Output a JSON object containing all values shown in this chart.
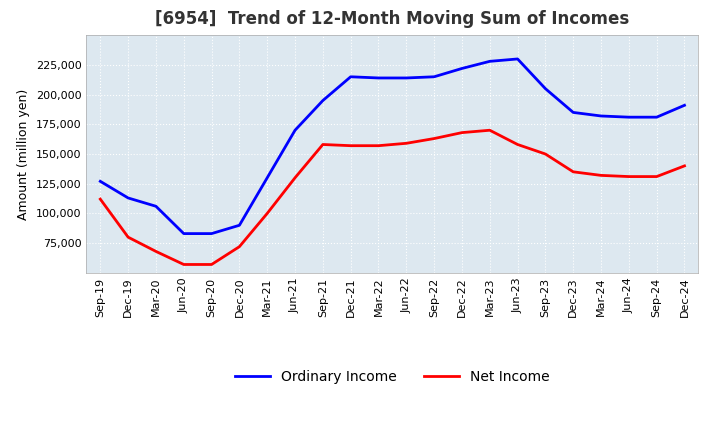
{
  "title": "[6954]  Trend of 12-Month Moving Sum of Incomes",
  "ylabel": "Amount (million yen)",
  "x_labels": [
    "Sep-19",
    "Dec-19",
    "Mar-20",
    "Jun-20",
    "Sep-20",
    "Dec-20",
    "Mar-21",
    "Jun-21",
    "Sep-21",
    "Dec-21",
    "Mar-22",
    "Jun-22",
    "Sep-22",
    "Dec-22",
    "Mar-23",
    "Jun-23",
    "Sep-23",
    "Dec-23",
    "Mar-24",
    "Jun-24",
    "Sep-24",
    "Dec-24"
  ],
  "ordinary_income": [
    127000,
    113000,
    106000,
    83000,
    83000,
    90000,
    130000,
    170000,
    195000,
    215000,
    214000,
    214000,
    215000,
    222000,
    228000,
    230000,
    205000,
    185000,
    182000,
    181000,
    181000,
    191000
  ],
  "net_income": [
    112000,
    80000,
    68000,
    57000,
    57000,
    72000,
    100000,
    130000,
    158000,
    157000,
    157000,
    159000,
    163000,
    168000,
    170000,
    158000,
    150000,
    135000,
    132000,
    131000,
    131000,
    140000
  ],
  "ordinary_color": "#0000ff",
  "net_color": "#ff0000",
  "ylim_min": 50000,
  "ylim_max": 250000,
  "yticks": [
    75000,
    100000,
    125000,
    150000,
    175000,
    200000,
    225000
  ],
  "fig_background": "#ffffff",
  "plot_background": "#dde8f0",
  "grid_color": "#ffffff",
  "title_fontsize": 12,
  "tick_fontsize": 8,
  "ylabel_fontsize": 9,
  "legend_entries": [
    "Ordinary Income",
    "Net Income"
  ],
  "legend_fontsize": 10
}
